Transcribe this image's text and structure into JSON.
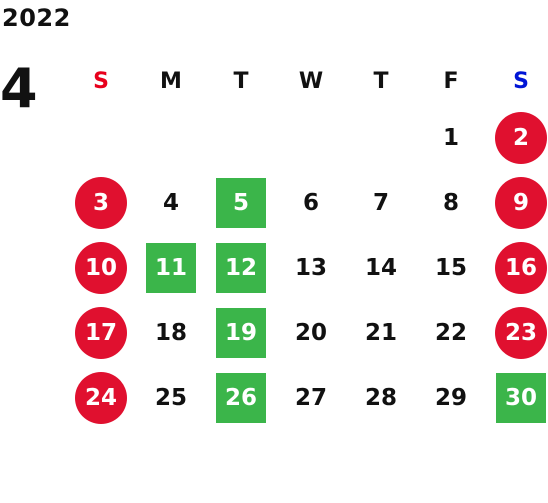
{
  "calendar": {
    "year": "2022",
    "month": "4",
    "weekdays": [
      "S",
      "M",
      "T",
      "W",
      "T",
      "F",
      "S"
    ],
    "weeks": [
      [
        {
          "day": "",
          "type": "empty"
        },
        {
          "day": "",
          "type": "empty"
        },
        {
          "day": "",
          "type": "empty"
        },
        {
          "day": "",
          "type": "empty"
        },
        {
          "day": "",
          "type": "empty"
        },
        {
          "day": "1",
          "type": "normal"
        },
        {
          "day": "2",
          "type": "holiday"
        }
      ],
      [
        {
          "day": "3",
          "type": "holiday"
        },
        {
          "day": "4",
          "type": "normal"
        },
        {
          "day": "5",
          "type": "closed"
        },
        {
          "day": "6",
          "type": "normal"
        },
        {
          "day": "7",
          "type": "normal"
        },
        {
          "day": "8",
          "type": "normal"
        },
        {
          "day": "9",
          "type": "holiday"
        }
      ],
      [
        {
          "day": "10",
          "type": "holiday"
        },
        {
          "day": "11",
          "type": "closed"
        },
        {
          "day": "12",
          "type": "closed"
        },
        {
          "day": "13",
          "type": "normal"
        },
        {
          "day": "14",
          "type": "normal"
        },
        {
          "day": "15",
          "type": "normal"
        },
        {
          "day": "16",
          "type": "holiday"
        }
      ],
      [
        {
          "day": "17",
          "type": "holiday"
        },
        {
          "day": "18",
          "type": "normal"
        },
        {
          "day": "19",
          "type": "closed"
        },
        {
          "day": "20",
          "type": "normal"
        },
        {
          "day": "21",
          "type": "normal"
        },
        {
          "day": "22",
          "type": "normal"
        },
        {
          "day": "23",
          "type": "holiday"
        }
      ],
      [
        {
          "day": "24",
          "type": "holiday"
        },
        {
          "day": "25",
          "type": "normal"
        },
        {
          "day": "26",
          "type": "closed"
        },
        {
          "day": "27",
          "type": "normal"
        },
        {
          "day": "28",
          "type": "normal"
        },
        {
          "day": "29",
          "type": "normal"
        },
        {
          "day": "30",
          "type": "closed"
        }
      ]
    ]
  },
  "colors": {
    "sunday_label": "#e8001c",
    "saturday_label": "#0015d6",
    "holiday_circle": "#e0102f",
    "closed_square": "#3bb54a",
    "text": "#111111"
  }
}
